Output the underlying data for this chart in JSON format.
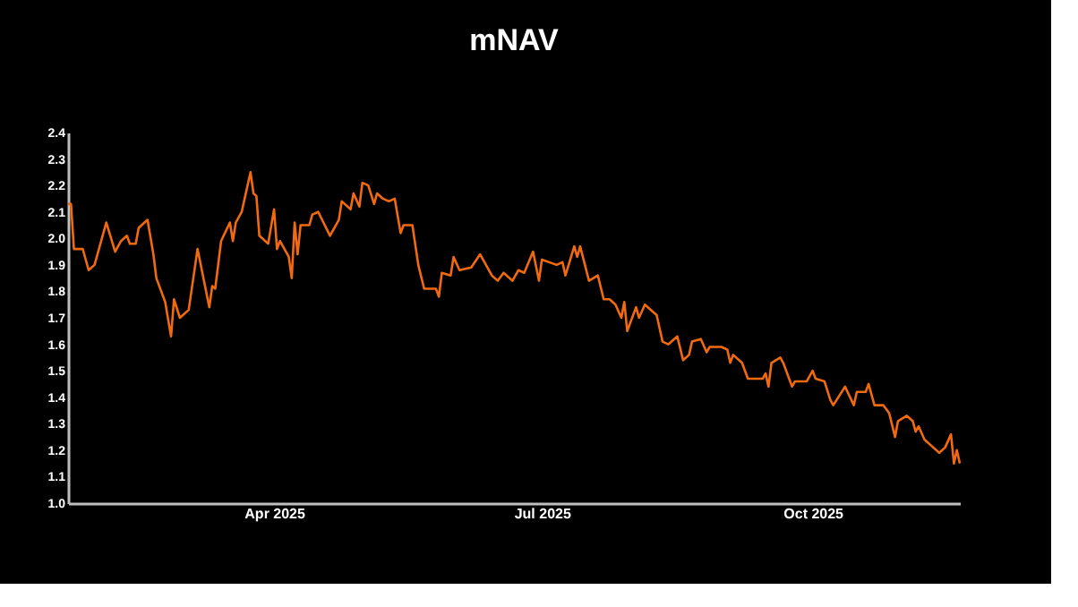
{
  "chart_data": {
    "type": "line",
    "title": "mNAV",
    "x": [
      "2025-01-21",
      "2025-01-22",
      "2025-01-23",
      "2025-01-26",
      "2025-01-28",
      "2025-01-30",
      "2025-02-03",
      "2025-02-06",
      "2025-02-08",
      "2025-02-10",
      "2025-02-11",
      "2025-02-13",
      "2025-02-14",
      "2025-02-17",
      "2025-02-19",
      "2025-02-20",
      "2025-02-23",
      "2025-02-25",
      "2025-02-26",
      "2025-02-28",
      "2025-03-03",
      "2025-03-06",
      "2025-03-10",
      "2025-03-11",
      "2025-03-12",
      "2025-03-14",
      "2025-03-17",
      "2025-03-18",
      "2025-03-19",
      "2025-03-21",
      "2025-03-24",
      "2025-03-25",
      "2025-03-26",
      "2025-03-27",
      "2025-03-30",
      "2025-04-01",
      "2025-04-02",
      "2025-04-03",
      "2025-04-06",
      "2025-04-07",
      "2025-04-08",
      "2025-04-09",
      "2025-04-10",
      "2025-04-13",
      "2025-04-14",
      "2025-04-16",
      "2025-04-20",
      "2025-04-23",
      "2025-04-24",
      "2025-04-27",
      "2025-04-28",
      "2025-04-30",
      "2025-05-01",
      "2025-05-03",
      "2025-05-05",
      "2025-05-06",
      "2025-05-08",
      "2025-05-10",
      "2025-05-12",
      "2025-05-14",
      "2025-05-15",
      "2025-05-18",
      "2025-05-20",
      "2025-05-22",
      "2025-05-26",
      "2025-05-27",
      "2025-05-28",
      "2025-05-31",
      "2025-06-01",
      "2025-06-03",
      "2025-06-07",
      "2025-06-10",
      "2025-06-14",
      "2025-06-16",
      "2025-06-18",
      "2025-06-21",
      "2025-06-23",
      "2025-06-25",
      "2025-06-28",
      "2025-06-30",
      "2025-07-01",
      "2025-07-06",
      "2025-07-08",
      "2025-07-09",
      "2025-07-12",
      "2025-07-13",
      "2025-07-14",
      "2025-07-17",
      "2025-07-20",
      "2025-07-22",
      "2025-07-24",
      "2025-07-26",
      "2025-07-28",
      "2025-07-29",
      "2025-07-30",
      "2025-08-02",
      "2025-08-03",
      "2025-08-05",
      "2025-08-09",
      "2025-08-11",
      "2025-08-13",
      "2025-08-16",
      "2025-08-18",
      "2025-08-20",
      "2025-08-21",
      "2025-08-24",
      "2025-08-26",
      "2025-08-27",
      "2025-08-31",
      "2025-09-02",
      "2025-09-03",
      "2025-09-04",
      "2025-09-07",
      "2025-09-09",
      "2025-09-12",
      "2025-09-14",
      "2025-09-15",
      "2025-09-16",
      "2025-09-17",
      "2025-09-20",
      "2025-09-21",
      "2025-09-24",
      "2025-09-25",
      "2025-09-29",
      "2025-10-01",
      "2025-10-02",
      "2025-10-05",
      "2025-10-07",
      "2025-10-08",
      "2025-10-12",
      "2025-10-15",
      "2025-10-16",
      "2025-10-19",
      "2025-10-20",
      "2025-10-22",
      "2025-10-25",
      "2025-10-27",
      "2025-10-29",
      "2025-10-30",
      "2025-11-02",
      "2025-11-04",
      "2025-11-05",
      "2025-11-06",
      "2025-11-08",
      "2025-11-11",
      "2025-11-13",
      "2025-11-15",
      "2025-11-17",
      "2025-11-18",
      "2025-11-19",
      "2025-11-20"
    ],
    "series": [
      {
        "color": "#f26a10",
        "values": [
          2.13,
          2.13,
          1.96,
          1.96,
          1.88,
          1.9,
          2.06,
          1.95,
          1.99,
          2.01,
          1.98,
          1.98,
          2.04,
          2.07,
          1.94,
          1.85,
          1.76,
          1.63,
          1.77,
          1.7,
          1.73,
          1.96,
          1.74,
          1.82,
          1.81,
          1.99,
          2.06,
          1.99,
          2.06,
          2.1,
          2.25,
          2.17,
          2.16,
          2.01,
          1.98,
          2.11,
          1.96,
          1.99,
          1.93,
          1.85,
          2.06,
          1.94,
          2.05,
          2.05,
          2.09,
          2.1,
          2.01,
          2.07,
          2.14,
          2.11,
          2.17,
          2.12,
          2.21,
          2.2,
          2.13,
          2.17,
          2.15,
          2.14,
          2.15,
          2.02,
          2.05,
          2.05,
          1.9,
          1.81,
          1.81,
          1.78,
          1.87,
          1.86,
          1.93,
          1.88,
          1.89,
          1.94,
          1.86,
          1.84,
          1.87,
          1.84,
          1.88,
          1.87,
          1.95,
          1.84,
          1.92,
          1.9,
          1.91,
          1.86,
          1.97,
          1.93,
          1.97,
          1.84,
          1.86,
          1.77,
          1.77,
          1.75,
          1.7,
          1.76,
          1.65,
          1.74,
          1.7,
          1.75,
          1.71,
          1.61,
          1.6,
          1.63,
          1.54,
          1.56,
          1.61,
          1.62,
          1.57,
          1.59,
          1.59,
          1.58,
          1.53,
          1.56,
          1.53,
          1.47,
          1.47,
          1.47,
          1.49,
          1.44,
          1.53,
          1.55,
          1.53,
          1.44,
          1.46,
          1.46,
          1.5,
          1.47,
          1.46,
          1.39,
          1.37,
          1.44,
          1.37,
          1.42,
          1.42,
          1.45,
          1.37,
          1.37,
          1.34,
          1.25,
          1.31,
          1.33,
          1.31,
          1.27,
          1.29,
          1.24,
          1.21,
          1.19,
          1.21,
          1.26,
          1.15,
          1.2,
          1.15
        ]
      }
    ],
    "xlim": [
      "2025-01-21",
      "2025-11-20"
    ],
    "xticks": [
      {
        "value": "2025-04-01",
        "label": "Apr 2025"
      },
      {
        "value": "2025-07-01",
        "label": "Jul 2025"
      },
      {
        "value": "2025-10-01",
        "label": "Oct 2025"
      }
    ],
    "ylim": [
      1.0,
      2.4
    ],
    "yticks": [
      {
        "value": 1.0,
        "label": "1.0"
      },
      {
        "value": 1.1,
        "label": "1.1"
      },
      {
        "value": 1.2,
        "label": "1.2"
      },
      {
        "value": 1.3,
        "label": "1.3"
      },
      {
        "value": 1.4,
        "label": "1.4"
      },
      {
        "value": 1.5,
        "label": "1.5"
      },
      {
        "value": 1.6,
        "label": "1.6"
      },
      {
        "value": 1.7,
        "label": "1.7"
      },
      {
        "value": 1.8,
        "label": "1.8"
      },
      {
        "value": 1.9,
        "label": "1.9"
      },
      {
        "value": 2.0,
        "label": "2.0"
      },
      {
        "value": 2.1,
        "label": "2.1"
      },
      {
        "value": 2.2,
        "label": "2.2"
      },
      {
        "value": 2.3,
        "label": "2.3"
      },
      {
        "value": 2.4,
        "label": "2.4"
      }
    ],
    "grid": false,
    "legend": false,
    "marker": "none",
    "line_style": "solid"
  }
}
